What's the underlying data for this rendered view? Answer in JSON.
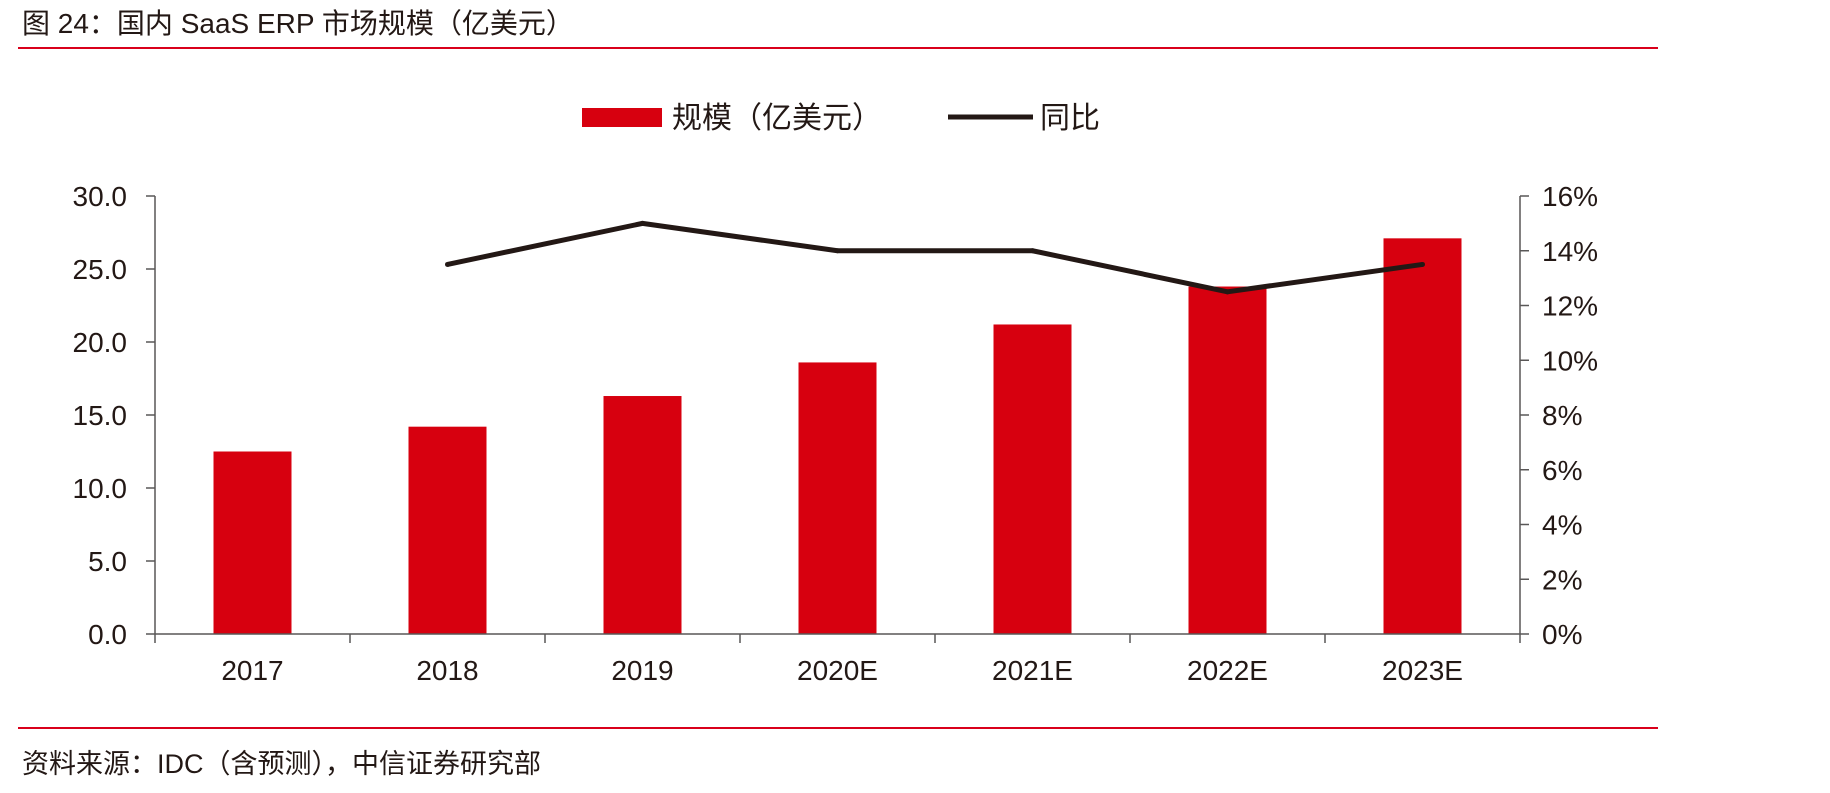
{
  "figure": {
    "title": "图 24：国内 SaaS ERP 市场规模（亿美元）",
    "source": "资料来源：IDC（含预测），中信证券研究部"
  },
  "colors": {
    "accent": "#d9001b",
    "bar": "#d7000f",
    "line": "#231815",
    "axis": "#595757"
  },
  "chart_data": {
    "type": "bar",
    "categories": [
      "2017",
      "2018",
      "2019",
      "2020E",
      "2021E",
      "2022E",
      "2023E"
    ],
    "series": [
      {
        "name": "规模（亿美元）",
        "type": "bar",
        "axis": "left",
        "values": [
          12.5,
          14.2,
          16.3,
          18.6,
          21.2,
          23.8,
          27.1
        ]
      },
      {
        "name": "同比",
        "type": "line",
        "axis": "right",
        "values": [
          null,
          0.135,
          0.15,
          0.14,
          0.14,
          0.125,
          0.135
        ]
      }
    ],
    "y_left": {
      "min": 0,
      "max": 30,
      "step": 5,
      "tick_labels": [
        "0.0",
        "5.0",
        "10.0",
        "15.0",
        "20.0",
        "25.0",
        "30.0"
      ]
    },
    "y_right": {
      "min": 0,
      "max": 0.16,
      "step": 0.02,
      "tick_labels": [
        "0%",
        "2%",
        "4%",
        "6%",
        "8%",
        "10%",
        "12%",
        "14%",
        "16%"
      ]
    },
    "legend": {
      "placement": "top-center"
    },
    "grid": false
  }
}
